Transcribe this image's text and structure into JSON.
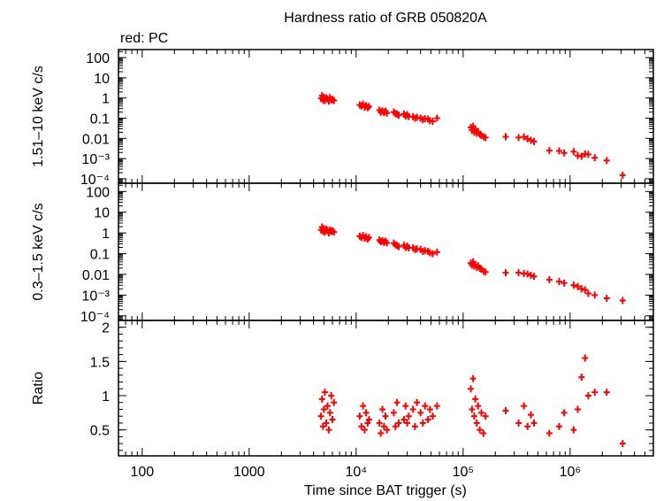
{
  "chart_data": {
    "type": "scatter",
    "title": "Hardness ratio of GRB 050820A",
    "subtitle": "red: PC",
    "xlabel": "Time since BAT trigger (s)",
    "x_scale": "log",
    "xlim": [
      60,
      6000000
    ],
    "x_ticks": [
      {
        "value": 100,
        "label": "100"
      },
      {
        "value": 1000,
        "label": "1000"
      },
      {
        "value": 10000,
        "label": "10⁴"
      },
      {
        "value": 100000,
        "label": "10⁵"
      },
      {
        "value": 1000000,
        "label": "10⁶"
      }
    ],
    "series_color": "#ff0000",
    "panels": [
      {
        "id": "hard",
        "ylabel": "1.51–10 keV c/s",
        "y_scale": "log",
        "ylim": [
          6e-05,
          250
        ],
        "y_ticks": [
          {
            "value": 100,
            "label": "100"
          },
          {
            "value": 10,
            "label": "10"
          },
          {
            "value": 1,
            "label": "1"
          },
          {
            "value": 0.1,
            "label": "0.1"
          },
          {
            "value": 0.01,
            "label": "0.01"
          },
          {
            "value": 0.001,
            "label": "10⁻³"
          },
          {
            "value": 0.0001,
            "label": "10⁻⁴"
          }
        ],
        "points": [
          {
            "x": 4700,
            "y": 0.95
          },
          {
            "x": 4800,
            "y": 1.3
          },
          {
            "x": 4900,
            "y": 0.8
          },
          {
            "x": 5000,
            "y": 1.1
          },
          {
            "x": 5100,
            "y": 0.75
          },
          {
            "x": 5250,
            "y": 1.0
          },
          {
            "x": 5400,
            "y": 0.9
          },
          {
            "x": 5550,
            "y": 0.7
          },
          {
            "x": 5700,
            "y": 1.05
          },
          {
            "x": 5850,
            "y": 0.8
          },
          {
            "x": 6000,
            "y": 0.85
          },
          {
            "x": 6200,
            "y": 0.75
          },
          {
            "x": 10800,
            "y": 0.45
          },
          {
            "x": 11200,
            "y": 0.4
          },
          {
            "x": 11600,
            "y": 0.5
          },
          {
            "x": 12000,
            "y": 0.35
          },
          {
            "x": 12400,
            "y": 0.42
          },
          {
            "x": 12800,
            "y": 0.33
          },
          {
            "x": 13200,
            "y": 0.38
          },
          {
            "x": 16500,
            "y": 0.25
          },
          {
            "x": 17000,
            "y": 0.2
          },
          {
            "x": 17600,
            "y": 0.23
          },
          {
            "x": 18200,
            "y": 0.19
          },
          {
            "x": 18800,
            "y": 0.22
          },
          {
            "x": 19400,
            "y": 0.18
          },
          {
            "x": 22500,
            "y": 0.2
          },
          {
            "x": 23300,
            "y": 0.17
          },
          {
            "x": 24100,
            "y": 0.16
          },
          {
            "x": 25000,
            "y": 0.14
          },
          {
            "x": 28000,
            "y": 0.16
          },
          {
            "x": 29000,
            "y": 0.13
          },
          {
            "x": 30000,
            "y": 0.15
          },
          {
            "x": 31000,
            "y": 0.12
          },
          {
            "x": 34000,
            "y": 0.12
          },
          {
            "x": 35500,
            "y": 0.1
          },
          {
            "x": 37000,
            "y": 0.11
          },
          {
            "x": 40000,
            "y": 0.1
          },
          {
            "x": 42000,
            "y": 0.085
          },
          {
            "x": 44000,
            "y": 0.095
          },
          {
            "x": 47000,
            "y": 0.09
          },
          {
            "x": 49000,
            "y": 0.075
          },
          {
            "x": 52000,
            "y": 0.07
          },
          {
            "x": 57000,
            "y": 0.1
          },
          {
            "x": 118000,
            "y": 0.035
          },
          {
            "x": 121000,
            "y": 0.025
          },
          {
            "x": 124000,
            "y": 0.04
          },
          {
            "x": 127000,
            "y": 0.02
          },
          {
            "x": 130000,
            "y": 0.03
          },
          {
            "x": 134000,
            "y": 0.018
          },
          {
            "x": 138000,
            "y": 0.022
          },
          {
            "x": 143000,
            "y": 0.016
          },
          {
            "x": 148000,
            "y": 0.014
          },
          {
            "x": 155000,
            "y": 0.012
          },
          {
            "x": 162000,
            "y": 0.011
          },
          {
            "x": 250000,
            "y": 0.012
          },
          {
            "x": 330000,
            "y": 0.011
          },
          {
            "x": 370000,
            "y": 0.012
          },
          {
            "x": 400000,
            "y": 0.0095
          },
          {
            "x": 430000,
            "y": 0.008
          },
          {
            "x": 460000,
            "y": 0.007
          },
          {
            "x": 640000,
            "y": 0.0025
          },
          {
            "x": 790000,
            "y": 0.0024
          },
          {
            "x": 880000,
            "y": 0.0019
          },
          {
            "x": 1080000,
            "y": 0.0022
          },
          {
            "x": 1180000,
            "y": 0.0014
          },
          {
            "x": 1280000,
            "y": 0.0013
          },
          {
            "x": 1380000,
            "y": 0.0017
          },
          {
            "x": 1480000,
            "y": 0.0016
          },
          {
            "x": 1700000,
            "y": 0.0011
          },
          {
            "x": 2200000,
            "y": 0.0008
          },
          {
            "x": 3100000,
            "y": 0.00015
          }
        ]
      },
      {
        "id": "soft",
        "ylabel": "0.3–1.5 keV c/s",
        "y_scale": "log",
        "ylim": [
          6e-05,
          250
        ],
        "y_ticks": [
          {
            "value": 100,
            "label": "100"
          },
          {
            "value": 10,
            "label": "10"
          },
          {
            "value": 1,
            "label": "1"
          },
          {
            "value": 0.1,
            "label": "0.1"
          },
          {
            "value": 0.01,
            "label": "0.01"
          },
          {
            "value": 0.001,
            "label": "10⁻³"
          },
          {
            "value": 0.0001,
            "label": "10⁻⁴"
          }
        ],
        "points": [
          {
            "x": 4700,
            "y": 1.4
          },
          {
            "x": 4800,
            "y": 1.9
          },
          {
            "x": 4900,
            "y": 1.2
          },
          {
            "x": 5000,
            "y": 1.6
          },
          {
            "x": 5100,
            "y": 1.1
          },
          {
            "x": 5250,
            "y": 1.5
          },
          {
            "x": 5400,
            "y": 1.3
          },
          {
            "x": 5550,
            "y": 1.0
          },
          {
            "x": 5700,
            "y": 1.4
          },
          {
            "x": 5850,
            "y": 1.2
          },
          {
            "x": 6000,
            "y": 1.25
          },
          {
            "x": 6200,
            "y": 1.1
          },
          {
            "x": 10800,
            "y": 0.7
          },
          {
            "x": 11200,
            "y": 0.6
          },
          {
            "x": 11600,
            "y": 0.75
          },
          {
            "x": 12000,
            "y": 0.55
          },
          {
            "x": 12400,
            "y": 0.65
          },
          {
            "x": 12800,
            "y": 0.5
          },
          {
            "x": 13200,
            "y": 0.6
          },
          {
            "x": 16500,
            "y": 0.45
          },
          {
            "x": 17000,
            "y": 0.38
          },
          {
            "x": 17600,
            "y": 0.42
          },
          {
            "x": 18200,
            "y": 0.35
          },
          {
            "x": 18800,
            "y": 0.4
          },
          {
            "x": 19400,
            "y": 0.33
          },
          {
            "x": 22500,
            "y": 0.32
          },
          {
            "x": 23300,
            "y": 0.27
          },
          {
            "x": 24100,
            "y": 0.25
          },
          {
            "x": 25000,
            "y": 0.22
          },
          {
            "x": 28000,
            "y": 0.25
          },
          {
            "x": 29000,
            "y": 0.2
          },
          {
            "x": 30000,
            "y": 0.23
          },
          {
            "x": 31000,
            "y": 0.19
          },
          {
            "x": 34000,
            "y": 0.19
          },
          {
            "x": 35500,
            "y": 0.16
          },
          {
            "x": 37000,
            "y": 0.17
          },
          {
            "x": 40000,
            "y": 0.16
          },
          {
            "x": 42000,
            "y": 0.13
          },
          {
            "x": 44000,
            "y": 0.14
          },
          {
            "x": 47000,
            "y": 0.13
          },
          {
            "x": 49000,
            "y": 0.11
          },
          {
            "x": 52000,
            "y": 0.1
          },
          {
            "x": 57000,
            "y": 0.12
          },
          {
            "x": 118000,
            "y": 0.035
          },
          {
            "x": 121000,
            "y": 0.028
          },
          {
            "x": 124000,
            "y": 0.04
          },
          {
            "x": 127000,
            "y": 0.025
          },
          {
            "x": 130000,
            "y": 0.03
          },
          {
            "x": 134000,
            "y": 0.022
          },
          {
            "x": 138000,
            "y": 0.026
          },
          {
            "x": 143000,
            "y": 0.02
          },
          {
            "x": 148000,
            "y": 0.018
          },
          {
            "x": 155000,
            "y": 0.014
          },
          {
            "x": 162000,
            "y": 0.013
          },
          {
            "x": 250000,
            "y": 0.012
          },
          {
            "x": 330000,
            "y": 0.012
          },
          {
            "x": 370000,
            "y": 0.011
          },
          {
            "x": 400000,
            "y": 0.0105
          },
          {
            "x": 430000,
            "y": 0.009
          },
          {
            "x": 460000,
            "y": 0.008
          },
          {
            "x": 640000,
            "y": 0.0055
          },
          {
            "x": 790000,
            "y": 0.0045
          },
          {
            "x": 880000,
            "y": 0.0038
          },
          {
            "x": 1080000,
            "y": 0.003
          },
          {
            "x": 1180000,
            "y": 0.0026
          },
          {
            "x": 1280000,
            "y": 0.002
          },
          {
            "x": 1380000,
            "y": 0.0018
          },
          {
            "x": 1480000,
            "y": 0.0012
          },
          {
            "x": 1700000,
            "y": 0.001
          },
          {
            "x": 2200000,
            "y": 0.0007
          },
          {
            "x": 3100000,
            "y": 0.00055
          }
        ]
      },
      {
        "id": "ratio",
        "ylabel": "Ratio",
        "y_scale": "linear",
        "ylim": [
          0.12,
          2.1
        ],
        "y_ticks": [
          {
            "value": 2,
            "label": "2"
          },
          {
            "value": 1.5,
            "label": "1.5"
          },
          {
            "value": 1,
            "label": "1"
          },
          {
            "value": 0.5,
            "label": "0.5"
          }
        ],
        "points": [
          {
            "x": 4700,
            "y": 0.7
          },
          {
            "x": 4800,
            "y": 0.95
          },
          {
            "x": 4900,
            "y": 0.55
          },
          {
            "x": 5000,
            "y": 0.8
          },
          {
            "x": 5100,
            "y": 1.05
          },
          {
            "x": 5250,
            "y": 0.6
          },
          {
            "x": 5400,
            "y": 0.85
          },
          {
            "x": 5550,
            "y": 0.5
          },
          {
            "x": 5700,
            "y": 0.75
          },
          {
            "x": 5850,
            "y": 1.0
          },
          {
            "x": 6000,
            "y": 0.65
          },
          {
            "x": 6200,
            "y": 0.9
          },
          {
            "x": 10800,
            "y": 0.7
          },
          {
            "x": 11200,
            "y": 0.55
          },
          {
            "x": 11600,
            "y": 0.85
          },
          {
            "x": 12000,
            "y": 0.5
          },
          {
            "x": 12400,
            "y": 0.75
          },
          {
            "x": 12800,
            "y": 0.6
          },
          {
            "x": 13200,
            "y": 0.65
          },
          {
            "x": 16500,
            "y": 0.6
          },
          {
            "x": 17000,
            "y": 0.45
          },
          {
            "x": 17600,
            "y": 0.8
          },
          {
            "x": 18200,
            "y": 0.55
          },
          {
            "x": 18800,
            "y": 0.7
          },
          {
            "x": 19400,
            "y": 0.5
          },
          {
            "x": 22500,
            "y": 0.75
          },
          {
            "x": 23300,
            "y": 0.55
          },
          {
            "x": 24100,
            "y": 0.9
          },
          {
            "x": 25000,
            "y": 0.6
          },
          {
            "x": 28000,
            "y": 0.65
          },
          {
            "x": 29000,
            "y": 0.85
          },
          {
            "x": 30000,
            "y": 0.6
          },
          {
            "x": 31000,
            "y": 0.7
          },
          {
            "x": 34000,
            "y": 0.8
          },
          {
            "x": 35500,
            "y": 0.55
          },
          {
            "x": 37000,
            "y": 0.9
          },
          {
            "x": 40000,
            "y": 0.75
          },
          {
            "x": 42000,
            "y": 0.6
          },
          {
            "x": 44000,
            "y": 0.85
          },
          {
            "x": 47000,
            "y": 0.65
          },
          {
            "x": 49000,
            "y": 0.8
          },
          {
            "x": 52000,
            "y": 0.7
          },
          {
            "x": 57000,
            "y": 0.85
          },
          {
            "x": 118000,
            "y": 1.1
          },
          {
            "x": 121000,
            "y": 0.8
          },
          {
            "x": 124000,
            "y": 1.25
          },
          {
            "x": 127000,
            "y": 0.7
          },
          {
            "x": 130000,
            "y": 0.95
          },
          {
            "x": 134000,
            "y": 0.6
          },
          {
            "x": 138000,
            "y": 0.85
          },
          {
            "x": 143000,
            "y": 0.5
          },
          {
            "x": 148000,
            "y": 0.75
          },
          {
            "x": 155000,
            "y": 0.45
          },
          {
            "x": 162000,
            "y": 0.7
          },
          {
            "x": 250000,
            "y": 0.78
          },
          {
            "x": 330000,
            "y": 0.6
          },
          {
            "x": 370000,
            "y": 0.85
          },
          {
            "x": 400000,
            "y": 0.55
          },
          {
            "x": 430000,
            "y": 0.72
          },
          {
            "x": 460000,
            "y": 0.6
          },
          {
            "x": 640000,
            "y": 0.45
          },
          {
            "x": 790000,
            "y": 0.55
          },
          {
            "x": 880000,
            "y": 0.75
          },
          {
            "x": 1080000,
            "y": 0.5
          },
          {
            "x": 1180000,
            "y": 0.8
          },
          {
            "x": 1280000,
            "y": 1.27
          },
          {
            "x": 1380000,
            "y": 1.55
          },
          {
            "x": 1480000,
            "y": 1.0
          },
          {
            "x": 1700000,
            "y": 1.05
          },
          {
            "x": 2200000,
            "y": 1.05
          },
          {
            "x": 3100000,
            "y": 0.3
          }
        ]
      }
    ]
  }
}
